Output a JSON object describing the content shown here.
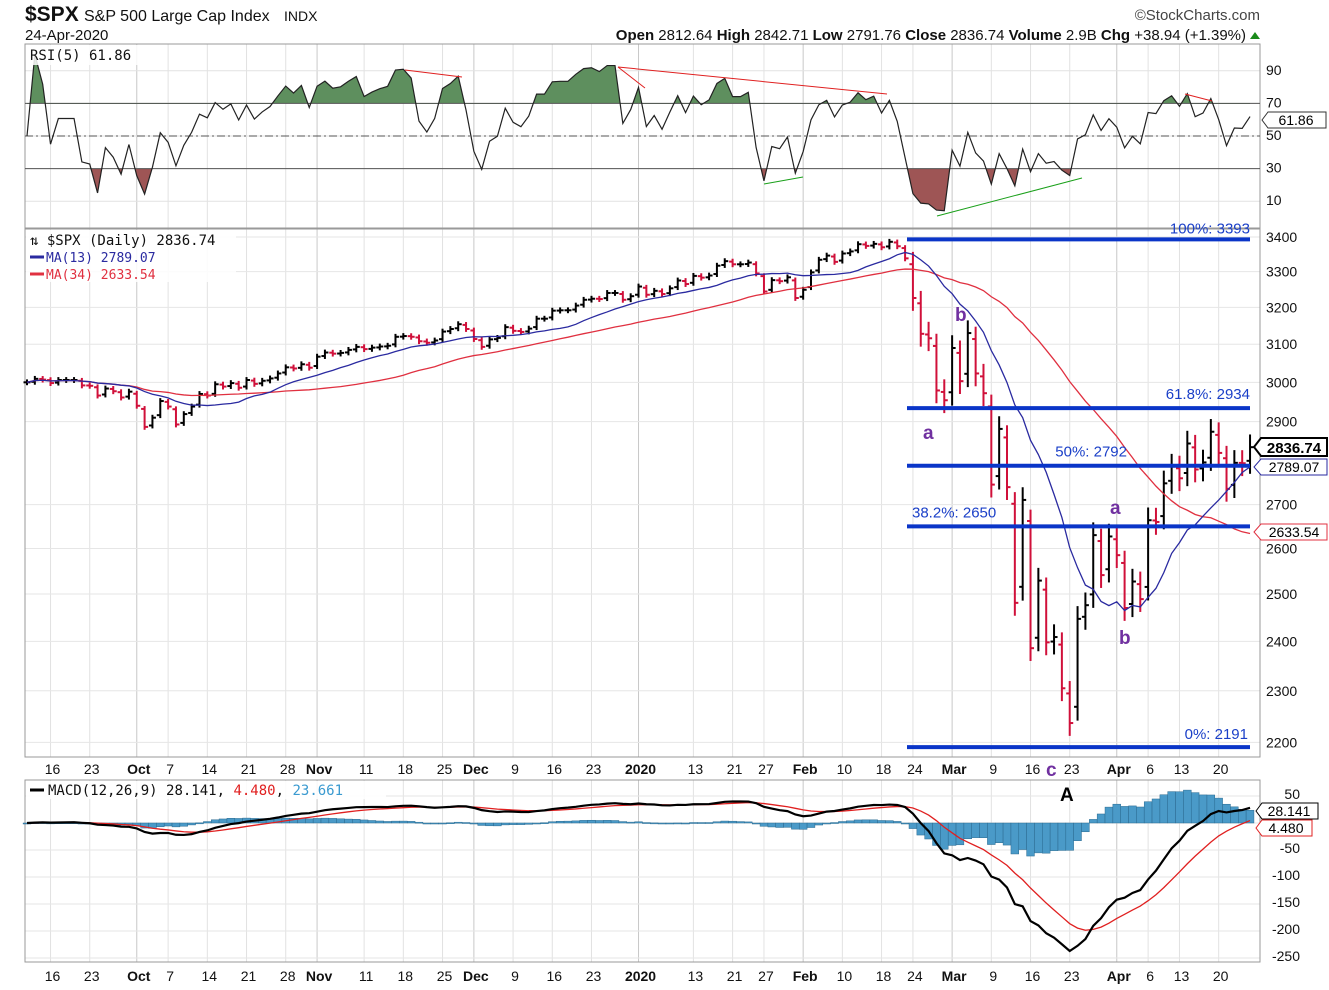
{
  "header": {
    "symbol": "$SPX",
    "name": "S&P 500 Large Cap Index",
    "exchange": "INDX",
    "date": "24-Apr-2020",
    "watermark": "©StockCharts.com",
    "open_label": "Open",
    "open": "2812.64",
    "high_label": "High",
    "high": "2842.71",
    "low_label": "Low",
    "low": "2791.76",
    "close_label": "Close",
    "close": "2836.74",
    "volume_label": "Volume",
    "volume": "2.9B",
    "chg_label": "Chg",
    "chg": "+38.94 (+1.39%)"
  },
  "colors": {
    "up": "#000000",
    "down": "#d0103a",
    "ma13": "#2a2aa0",
    "ma34": "#e03040",
    "fib": "#0a35c8",
    "rsi_pos": "#5e8f5e",
    "rsi_neg": "#9e5555",
    "macd": "#000000",
    "signal": "#e02020",
    "hist": "#4a9ac8",
    "wave": "#7030a0"
  },
  "chart_data": [
    {
      "type": "line",
      "title": "RSI(5) 61.86",
      "indicator": "RSI(5)",
      "last_value": "61.86",
      "ylim": [
        0,
        100
      ],
      "yticks": [
        "90",
        "70",
        "50",
        "30",
        "10"
      ],
      "reference_lines": [
        70,
        50,
        30
      ]
    },
    {
      "type": "ohlc",
      "title": "$SPX (Daily) 2836.74",
      "ma13_label": "MA(13) 2789.07",
      "ma34_label": "MA(34) 2633.54",
      "last_close_tag": "2836.74",
      "ma13_tag": "2789.07",
      "ma34_tag": "2633.54",
      "scale": "log",
      "ylim": [
        2180,
        3420
      ],
      "yticks": [
        "3400",
        "3300",
        "3200",
        "3100",
        "3000",
        "2900",
        "2700",
        "2600",
        "2500",
        "2400",
        "2300",
        "2200"
      ],
      "x_start": "2019-09-11",
      "x_end": "2020-04-24",
      "xticks": [
        {
          "label": "16",
          "i": 3
        },
        {
          "label": "23",
          "i": 8
        },
        {
          "label": "Oct",
          "i": 14,
          "bold": true
        },
        {
          "label": "7",
          "i": 18
        },
        {
          "label": "14",
          "i": 23
        },
        {
          "label": "21",
          "i": 28
        },
        {
          "label": "28",
          "i": 33
        },
        {
          "label": "Nov",
          "i": 37,
          "bold": true
        },
        {
          "label": "11",
          "i": 43
        },
        {
          "label": "18",
          "i": 48
        },
        {
          "label": "25",
          "i": 53
        },
        {
          "label": "Dec",
          "i": 57,
          "bold": true
        },
        {
          "label": "9",
          "i": 62
        },
        {
          "label": "16",
          "i": 67
        },
        {
          "label": "23",
          "i": 72
        },
        {
          "label": "2020",
          "i": 78,
          "bold": true
        },
        {
          "label": "13",
          "i": 85
        },
        {
          "label": "21",
          "i": 90
        },
        {
          "label": "27",
          "i": 94
        },
        {
          "label": "Feb",
          "i": 99,
          "bold": true
        },
        {
          "label": "10",
          "i": 104
        },
        {
          "label": "18",
          "i": 109
        },
        {
          "label": "24",
          "i": 113
        },
        {
          "label": "Mar",
          "i": 118,
          "bold": true
        },
        {
          "label": "9",
          "i": 123
        },
        {
          "label": "16",
          "i": 128
        },
        {
          "label": "23",
          "i": 133
        },
        {
          "label": "Apr",
          "i": 139,
          "bold": true
        },
        {
          "label": "6",
          "i": 143
        },
        {
          "label": "13",
          "i": 147
        },
        {
          "label": "20",
          "i": 152
        }
      ],
      "close": [
        3000,
        3009,
        3007,
        2998,
        3006,
        3006,
        3006,
        2992,
        2991,
        2966,
        2984,
        2977,
        2961,
        2976,
        2940,
        2887,
        2910,
        2952,
        2938,
        2893,
        2919,
        2938,
        2970,
        2966,
        2995,
        2989,
        2998,
        2986,
        3006,
        2996,
        3004,
        3010,
        3023,
        3039,
        3036,
        3047,
        3038,
        3067,
        3078,
        3075,
        3077,
        3085,
        3093,
        3087,
        3091,
        3094,
        3096,
        3120,
        3122,
        3120,
        3108,
        3104,
        3110,
        3134,
        3141,
        3154,
        3141,
        3114,
        3093,
        3113,
        3117,
        3146,
        3136,
        3133,
        3142,
        3169,
        3169,
        3191,
        3192,
        3192,
        3205,
        3221,
        3224,
        3223,
        3240,
        3240,
        3221,
        3231,
        3258,
        3235,
        3246,
        3237,
        3253,
        3275,
        3265,
        3288,
        3283,
        3289,
        3317,
        3330,
        3321,
        3321,
        3326,
        3295,
        3244,
        3276,
        3273,
        3284,
        3226,
        3249,
        3298,
        3334,
        3346,
        3328,
        3352,
        3358,
        3379,
        3374,
        3380,
        3370,
        3386,
        3373,
        3338,
        3226,
        3128,
        3116,
        2979,
        2954,
        3090,
        3003,
        3130,
        3023,
        2972,
        2747,
        2882,
        2741,
        2481,
        2711,
        2386,
        2529,
        2398,
        2409,
        2305,
        2237,
        2447,
        2476,
        2630,
        2541,
        2627,
        2585,
        2470,
        2527,
        2489,
        2664,
        2660,
        2750,
        2790,
        2762,
        2846,
        2783,
        2800,
        2875,
        2823,
        2737,
        2799,
        2798,
        2837
      ],
      "fibonacci": [
        {
          "label": "100%: 3393",
          "value": 3393
        },
        {
          "label": "61.8%: 2934",
          "value": 2934
        },
        {
          "label": "50%: 2792",
          "value": 2792
        },
        {
          "label": "38.2%: 2650",
          "value": 2650
        },
        {
          "label": "0%: 2191",
          "value": 2191
        }
      ],
      "wave_labels": [
        "a",
        "b",
        "c",
        "A",
        "a",
        "b"
      ]
    },
    {
      "type": "line+bar",
      "title": "MACD(12,26,9)",
      "macd_value": "28.141",
      "signal_value": "4.480",
      "hist_value": "23.661",
      "macd_tag": "28.141",
      "signal_tag": "4.480",
      "ylim": [
        -260,
        60
      ],
      "yticks": [
        "50",
        "-50",
        "-100",
        "-150",
        "-200",
        "-250"
      ]
    }
  ]
}
